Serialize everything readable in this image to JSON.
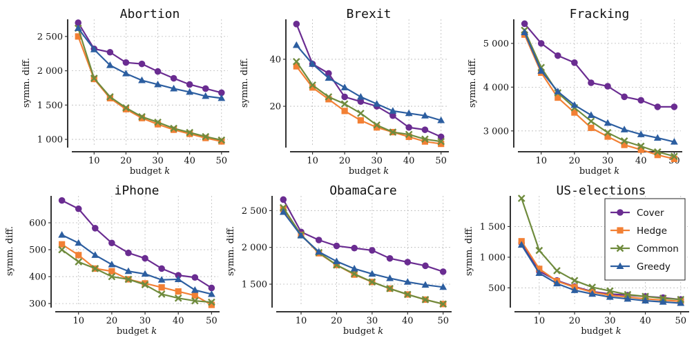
{
  "series_colors": {
    "Cover": "#6a2c91",
    "Hedge": "#f28034",
    "Common": "#6f8b3d",
    "Greedy": "#2c5ea0"
  },
  "series_markers": {
    "Cover": "circle",
    "Hedge": "square",
    "Common": "x-cross",
    "Greedy": "triangle"
  },
  "legend": {
    "placement": "top-right of US-elections panel",
    "entries": [
      "Cover",
      "Hedge",
      "Common",
      "Greedy"
    ]
  },
  "chart_data": [
    {
      "type": "line",
      "title": "Abortion",
      "xlabel": "budget k",
      "ylabel": "symm. diff.",
      "x": [
        5,
        10,
        15,
        20,
        25,
        30,
        35,
        40,
        45,
        50
      ],
      "xticks": [
        10,
        20,
        30,
        40,
        50
      ],
      "xtick_labels": [
        "10",
        "20",
        "30",
        "40",
        "50"
      ],
      "xlim": [
        3,
        52
      ],
      "ylim": [
        900,
        2750
      ],
      "yticks": [
        1000,
        1500,
        2000,
        2500
      ],
      "ytick_labels": [
        "1 000",
        "1 500",
        "2 000",
        "2 500"
      ],
      "grid": true,
      "series": [
        {
          "name": "Cover",
          "values": [
            2700,
            2320,
            2270,
            2120,
            2100,
            1990,
            1890,
            1800,
            1740,
            1680
          ]
        },
        {
          "name": "Hedge",
          "values": [
            2500,
            1880,
            1600,
            1440,
            1310,
            1220,
            1140,
            1080,
            1020,
            970
          ]
        },
        {
          "name": "Common",
          "values": [
            2620,
            1890,
            1620,
            1460,
            1330,
            1250,
            1160,
            1100,
            1040,
            990
          ]
        },
        {
          "name": "Greedy",
          "values": [
            2620,
            2310,
            2080,
            1960,
            1860,
            1800,
            1740,
            1690,
            1630,
            1600
          ]
        }
      ]
    },
    {
      "type": "line",
      "title": "Brexit",
      "xlabel": "budget k",
      "ylabel": "symm. diff.",
      "x": [
        5,
        10,
        15,
        20,
        25,
        30,
        35,
        40,
        45,
        50
      ],
      "xticks": [
        10,
        20,
        30,
        40,
        50
      ],
      "xtick_labels": [
        "10",
        "20",
        "30",
        "40",
        "50"
      ],
      "xlim": [
        3,
        52
      ],
      "ylim": [
        3,
        57
      ],
      "yticks": [
        20,
        40
      ],
      "ytick_labels": [
        "20",
        "40"
      ],
      "grid": true,
      "series": [
        {
          "name": "Cover",
          "values": [
            55,
            38,
            34,
            24,
            22,
            20,
            16,
            11,
            10,
            7
          ]
        },
        {
          "name": "Hedge",
          "values": [
            37,
            28,
            23,
            18,
            14,
            11,
            9,
            7,
            5,
            4
          ]
        },
        {
          "name": "Common",
          "values": [
            39,
            29,
            24,
            21,
            17,
            12,
            9,
            8,
            6,
            5
          ]
        },
        {
          "name": "Greedy",
          "values": [
            46,
            38,
            32,
            28,
            24,
            21,
            18,
            17,
            16,
            14
          ]
        }
      ]
    },
    {
      "type": "line",
      "title": "Fracking",
      "xlabel": "budget k",
      "ylabel": "symm. diff.",
      "x": [
        5,
        10,
        15,
        20,
        25,
        30,
        35,
        40,
        45,
        50
      ],
      "xticks": [
        10,
        20,
        30,
        40,
        50
      ],
      "xtick_labels": [
        "10",
        "20",
        "30",
        "40",
        "50"
      ],
      "xlim": [
        3,
        52
      ],
      "ylim": [
        2650,
        5550
      ],
      "yticks": [
        3000,
        4000,
        5000
      ],
      "ytick_labels": [
        "3 000",
        "4 000",
        "5 000"
      ],
      "grid": true,
      "series": [
        {
          "name": "Cover",
          "values": [
            5450,
            5000,
            4720,
            4560,
            4100,
            4020,
            3780,
            3700,
            3550,
            3550
          ]
        },
        {
          "name": "Hedge",
          "values": [
            5200,
            4330,
            3760,
            3420,
            3070,
            2870,
            2680,
            2570,
            2450,
            2360
          ]
        },
        {
          "name": "Common",
          "values": [
            5300,
            4450,
            3870,
            3530,
            3220,
            2960,
            2770,
            2650,
            2520,
            2420
          ]
        },
        {
          "name": "Greedy",
          "values": [
            5250,
            4370,
            3900,
            3590,
            3360,
            3180,
            3030,
            2920,
            2840,
            2750
          ]
        }
      ]
    },
    {
      "type": "line",
      "title": "iPhone",
      "xlabel": "budget k",
      "ylabel": "symm. diff.",
      "x": [
        5,
        10,
        15,
        20,
        25,
        30,
        35,
        40,
        45,
        50
      ],
      "xticks": [
        10,
        20,
        30,
        40,
        50
      ],
      "xtick_labels": [
        "10",
        "20",
        "30",
        "40",
        "50"
      ],
      "xlim": [
        3,
        52
      ],
      "ylim": [
        290,
        700
      ],
      "yticks": [
        300,
        400,
        500,
        600
      ],
      "ytick_labels": [
        "300",
        "400",
        "500",
        "600"
      ],
      "grid": true,
      "series": [
        {
          "name": "Cover",
          "values": [
            683,
            652,
            580,
            525,
            488,
            468,
            430,
            405,
            397,
            358
          ]
        },
        {
          "name": "Hedge",
          "values": [
            520,
            480,
            430,
            420,
            390,
            375,
            360,
            345,
            330,
            295
          ]
        },
        {
          "name": "Common",
          "values": [
            500,
            455,
            430,
            400,
            390,
            370,
            335,
            320,
            310,
            305
          ]
        },
        {
          "name": "Greedy",
          "values": [
            555,
            525,
            480,
            445,
            420,
            410,
            388,
            390,
            350,
            335
          ]
        }
      ]
    },
    {
      "type": "line",
      "title": "ObamaCare",
      "xlabel": "budget k",
      "ylabel": "symm. diff.",
      "x": [
        5,
        10,
        15,
        20,
        25,
        30,
        35,
        40,
        45,
        50
      ],
      "xticks": [
        10,
        20,
        30,
        40,
        50
      ],
      "xtick_labels": [
        "10",
        "20",
        "30",
        "40",
        "50"
      ],
      "xlim": [
        3,
        52
      ],
      "ylim": [
        1200,
        2700
      ],
      "yticks": [
        1500,
        2000,
        2500
      ],
      "ytick_labels": [
        "1 500",
        "2 000",
        "2 500"
      ],
      "grid": true,
      "series": [
        {
          "name": "Cover",
          "values": [
            2650,
            2210,
            2100,
            2020,
            1990,
            1960,
            1850,
            1800,
            1750,
            1670
          ]
        },
        {
          "name": "Hedge",
          "values": [
            2520,
            2170,
            1920,
            1760,
            1630,
            1530,
            1440,
            1360,
            1290,
            1230
          ]
        },
        {
          "name": "Common",
          "values": [
            2540,
            2170,
            1930,
            1760,
            1640,
            1530,
            1440,
            1360,
            1290,
            1230
          ]
        },
        {
          "name": "Greedy",
          "values": [
            2480,
            2160,
            1940,
            1810,
            1710,
            1640,
            1580,
            1530,
            1490,
            1460
          ]
        }
      ]
    },
    {
      "type": "line",
      "title": "US-elections",
      "xlabel": "budget k",
      "ylabel": "symm. diff.",
      "x": [
        5,
        10,
        15,
        20,
        25,
        30,
        35,
        40,
        45,
        50
      ],
      "xticks": [
        10,
        20,
        30,
        40,
        50
      ],
      "xtick_labels": [
        "10",
        "20",
        "30",
        "40",
        "50"
      ],
      "xlim": [
        3,
        52
      ],
      "ylim": [
        200,
        2000
      ],
      "yticks": [
        500,
        1000,
        1500
      ],
      "ytick_labels": [
        "500",
        "1 000",
        "1 500"
      ],
      "grid": true,
      "series": [
        {
          "name": "Cover",
          "values": [
            1230,
            770,
            620,
            520,
            440,
            400,
            380,
            360,
            340,
            310
          ]
        },
        {
          "name": "Hedge",
          "values": [
            1260,
            810,
            610,
            510,
            430,
            380,
            350,
            320,
            300,
            280
          ]
        },
        {
          "name": "Common",
          "values": [
            1960,
            1110,
            780,
            620,
            510,
            450,
            390,
            360,
            330,
            310
          ]
        },
        {
          "name": "Greedy",
          "values": [
            1200,
            740,
            570,
            460,
            400,
            350,
            320,
            290,
            270,
            250
          ]
        }
      ]
    }
  ]
}
